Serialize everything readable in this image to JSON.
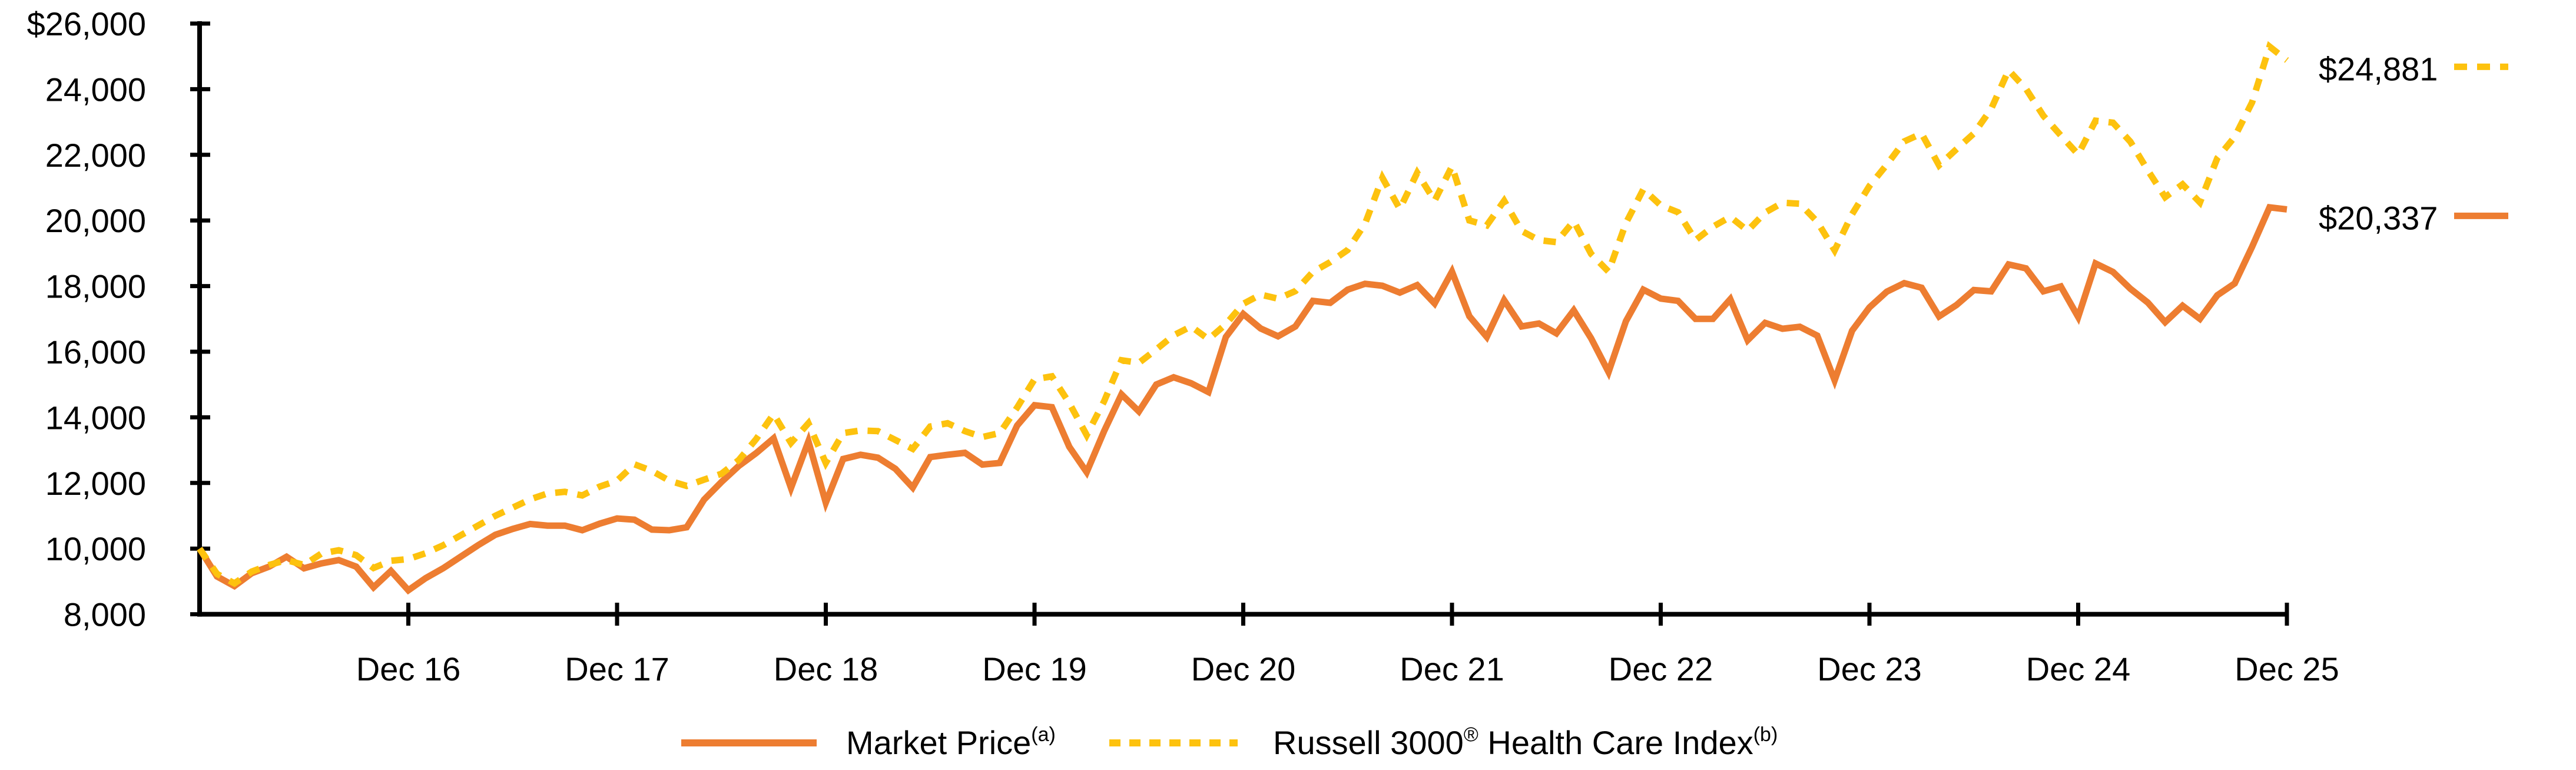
{
  "chart_data": {
    "type": "line",
    "title": "",
    "x_start_period": "Dec 15",
    "x_unit": "month",
    "points_per_series": 121,
    "x_tick_labels": [
      "Dec 16",
      "Dec 17",
      "Dec 18",
      "Dec 19",
      "Dec 20",
      "Dec 21",
      "Dec 22",
      "Dec 23",
      "Dec 24",
      "Dec 25"
    ],
    "y_tick_labels": [
      "$26,000",
      "24,000",
      "22,000",
      "20,000",
      "18,000",
      "16,000",
      "14,000",
      "12,000",
      "10,000",
      "8,000"
    ],
    "y_tick_values": [
      26000,
      24000,
      22000,
      20000,
      18000,
      16000,
      14000,
      12000,
      10000,
      8000
    ],
    "ylim": [
      8000,
      26000
    ],
    "grid": false,
    "legend_position": "bottom",
    "axis_color": "#000000",
    "series": [
      {
        "name": "Market Price",
        "label_parts": [
          {
            "text": "Market Price",
            "sup": false
          },
          {
            "text": "(a)",
            "sup": true
          }
        ],
        "color": "#ED7D31",
        "style": "solid",
        "end_label": "$20,337",
        "end_value": 20337,
        "values": [
          10000,
          9150,
          8860,
          9250,
          9450,
          9750,
          9400,
          9550,
          9650,
          9450,
          8820,
          9320,
          8730,
          9100,
          9400,
          9750,
          10100,
          10420,
          10600,
          10750,
          10700,
          10700,
          10560,
          10760,
          10920,
          10880,
          10580,
          10560,
          10650,
          11490,
          12030,
          12520,
          12910,
          13360,
          11850,
          13270,
          11400,
          12730,
          12860,
          12770,
          12430,
          11860,
          12790,
          12860,
          12920,
          12560,
          12610,
          13750,
          14370,
          14310,
          13100,
          12330,
          13580,
          14700,
          14180,
          15000,
          15220,
          15040,
          14770,
          16450,
          17150,
          16710,
          16470,
          16770,
          17550,
          17490,
          17890,
          18070,
          18010,
          17800,
          18030,
          17470,
          18440,
          17080,
          16450,
          17570,
          16770,
          16860,
          16560,
          17260,
          16410,
          15380,
          16930,
          17890,
          17620,
          17550,
          17000,
          17000,
          17600,
          16350,
          16880,
          16700,
          16760,
          16490,
          15130,
          16640,
          17350,
          17830,
          18090,
          17950,
          17075,
          17420,
          17880,
          17840,
          18660,
          18540,
          17840,
          17990,
          17060,
          18690,
          18430,
          17920,
          17500,
          16900,
          17400,
          17000,
          17720,
          18080,
          19200,
          20400,
          20337
        ]
      },
      {
        "name": "Russell 3000 Health Care Index",
        "label_parts": [
          {
            "text": "Russell 3000",
            "sup": false
          },
          {
            "text": "®",
            "sup": true
          },
          {
            "text": " Health Care Index",
            "sup": false
          },
          {
            "text": "(b)",
            "sup": true
          }
        ],
        "color": "#FDC20E",
        "style": "dashed",
        "end_label": "$24,881",
        "end_value": 24881,
        "values": [
          10000,
          9230,
          8940,
          9300,
          9500,
          9650,
          9500,
          9850,
          9950,
          9800,
          9410,
          9630,
          9680,
          9860,
          10100,
          10400,
          10700,
          11000,
          11250,
          11500,
          11680,
          11730,
          11620,
          11890,
          12070,
          12570,
          12370,
          12070,
          11910,
          12100,
          12280,
          12700,
          13340,
          14100,
          13220,
          13820,
          12610,
          13520,
          13600,
          13580,
          13310,
          13040,
          13720,
          13820,
          13580,
          13400,
          13520,
          14300,
          15160,
          15250,
          14430,
          13460,
          14490,
          15740,
          15660,
          16070,
          16500,
          16770,
          16380,
          16840,
          17460,
          17740,
          17615,
          17850,
          18430,
          18730,
          19100,
          19900,
          21300,
          20350,
          21450,
          20600,
          21650,
          20000,
          19850,
          20600,
          19680,
          19400,
          19340,
          19980,
          18980,
          18440,
          19920,
          20950,
          20460,
          20250,
          19400,
          19810,
          20110,
          19690,
          20240,
          20540,
          20510,
          19960,
          19090,
          20190,
          21050,
          21700,
          22410,
          22650,
          21680,
          22170,
          22650,
          23400,
          24580,
          24010,
          23190,
          22590,
          22010,
          23040,
          22980,
          22400,
          21530,
          20710,
          21100,
          20550,
          21900,
          22550,
          23600,
          25300,
          24881
        ]
      }
    ]
  }
}
